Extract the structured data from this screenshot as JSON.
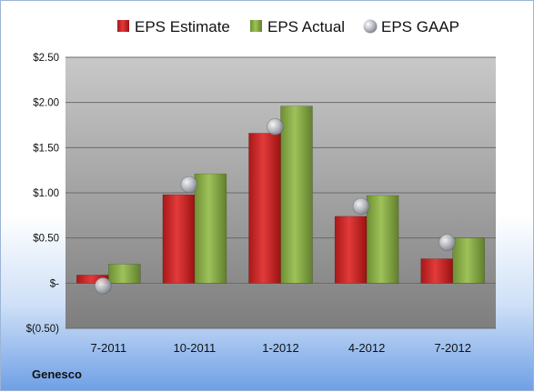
{
  "company": "Genesco",
  "colors": {
    "estimate": "#d42b2b",
    "actual": "#8db04a",
    "gaap": "#b8bcc6"
  },
  "chart_data": {
    "type": "bar",
    "categories": [
      "7-2011",
      "10-2011",
      "1-2012",
      "4-2012",
      "7-2012"
    ],
    "series": [
      {
        "name": "EPS Estimate",
        "kind": "bar",
        "values": [
          0.09,
          0.98,
          1.66,
          0.74,
          0.27
        ]
      },
      {
        "name": "EPS Actual",
        "kind": "bar",
        "values": [
          0.21,
          1.21,
          1.96,
          0.97,
          0.5
        ]
      },
      {
        "name": "EPS GAAP",
        "kind": "marker",
        "values": [
          -0.03,
          1.09,
          1.73,
          0.85,
          0.45
        ]
      }
    ],
    "y_ticks": [
      2.5,
      2.0,
      1.5,
      1.0,
      0.5,
      0,
      -0.5
    ],
    "y_tick_labels": [
      "$2.50",
      "$2.00",
      "$1.50",
      "$1.00",
      "$0.50",
      "$-",
      "$(0.50)"
    ],
    "ylim": [
      -0.5,
      2.5
    ],
    "grid": true,
    "legend_position": "top"
  }
}
